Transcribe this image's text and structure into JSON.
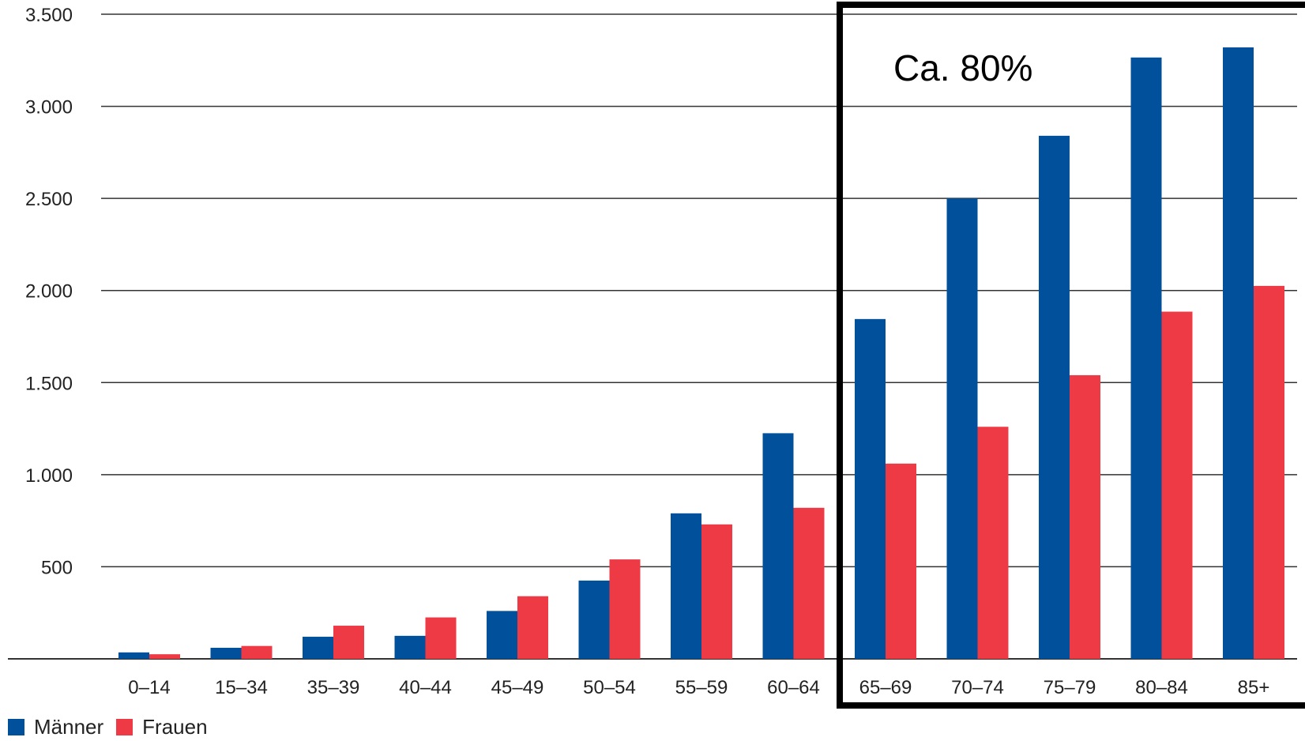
{
  "chart_data": {
    "type": "bar",
    "categories": [
      "0–14",
      "15–34",
      "35–39",
      "40–44",
      "45–49",
      "50–54",
      "55–59",
      "60–64",
      "65–69",
      "70–74",
      "75–79",
      "80–84",
      "85+"
    ],
    "series": [
      {
        "name": "Männer",
        "color": "#00509b",
        "values": [
          35,
          60,
          120,
          125,
          260,
          425,
          790,
          1225,
          1845,
          2500,
          2840,
          3265,
          3320
        ]
      },
      {
        "name": "Frauen",
        "color": "#ee3a45",
        "values": [
          25,
          70,
          180,
          225,
          340,
          540,
          730,
          820,
          1060,
          1260,
          1540,
          1885,
          2025
        ]
      }
    ],
    "yticks": [
      "500",
      "1.000",
      "1.500",
      "2.000",
      "2.500",
      "3.000",
      "3.500"
    ],
    "ylim": [
      0,
      3500
    ],
    "grid": true,
    "legend": "bottom-left",
    "annotation": {
      "text": "Ca. 80%",
      "box_categories": [
        "65–69",
        "85+"
      ]
    }
  }
}
